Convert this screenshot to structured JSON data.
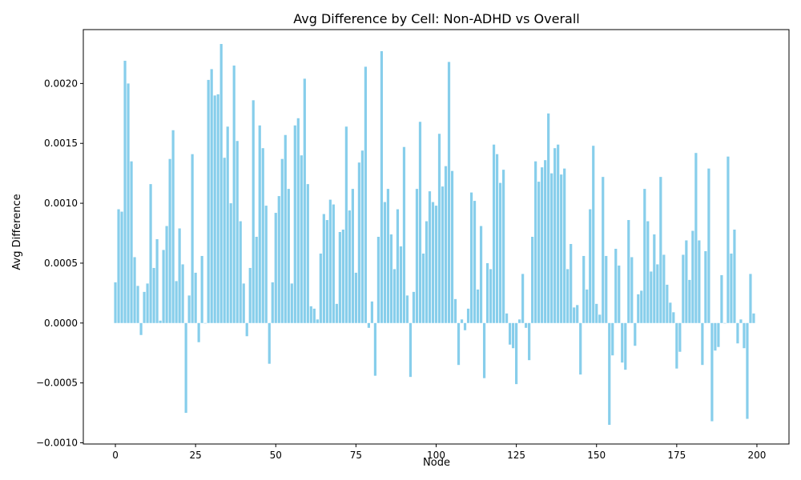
{
  "chart_data": {
    "type": "bar",
    "title": "Avg Difference by Cell: Non-ADHD vs Overall",
    "xlabel": "Node",
    "ylabel": "Avg Difference",
    "xlim": [
      -10,
      210
    ],
    "ylim": [
      -0.00101,
      0.00245
    ],
    "xticks": [
      0,
      25,
      50,
      75,
      100,
      125,
      150,
      175,
      200
    ],
    "xtick_labels": [
      "0",
      "25",
      "50",
      "75",
      "100",
      "125",
      "150",
      "175",
      "200"
    ],
    "yticks": [
      -0.001,
      -0.0005,
      0.0,
      0.0005,
      0.001,
      0.0015,
      0.002
    ],
    "ytick_labels": [
      "−0.0010",
      "−0.0005",
      "0.0000",
      "0.0005",
      "0.0010",
      "0.0015",
      "0.0020"
    ],
    "bar_color": "#87ceeb",
    "grid": false,
    "x": [
      0,
      1,
      2,
      3,
      4,
      5,
      6,
      7,
      8,
      9,
      10,
      11,
      12,
      13,
      14,
      15,
      16,
      17,
      18,
      19,
      20,
      21,
      22,
      23,
      24,
      25,
      26,
      27,
      28,
      29,
      30,
      31,
      32,
      33,
      34,
      35,
      36,
      37,
      38,
      39,
      40,
      41,
      42,
      43,
      44,
      45,
      46,
      47,
      48,
      49,
      50,
      51,
      52,
      53,
      54,
      55,
      56,
      57,
      58,
      59,
      60,
      61,
      62,
      63,
      64,
      65,
      66,
      67,
      68,
      69,
      70,
      71,
      72,
      73,
      74,
      75,
      76,
      77,
      78,
      79,
      80,
      81,
      82,
      83,
      84,
      85,
      86,
      87,
      88,
      89,
      90,
      91,
      92,
      93,
      94,
      95,
      96,
      97,
      98,
      99,
      100,
      101,
      102,
      103,
      104,
      105,
      106,
      107,
      108,
      109,
      110,
      111,
      112,
      113,
      114,
      115,
      116,
      117,
      118,
      119,
      120,
      121,
      122,
      123,
      124,
      125,
      126,
      127,
      128,
      129,
      130,
      131,
      132,
      133,
      134,
      135,
      136,
      137,
      138,
      139,
      140,
      141,
      142,
      143,
      144,
      145,
      146,
      147,
      148,
      149,
      150,
      151,
      152,
      153,
      154,
      155,
      156,
      157,
      158,
      159,
      160,
      161,
      162,
      163,
      164,
      165,
      166,
      167,
      168,
      169,
      170,
      171,
      172,
      173,
      174,
      175,
      176,
      177,
      178,
      179,
      180,
      181,
      182,
      183,
      184,
      185,
      186,
      187,
      188,
      189,
      190,
      191,
      192,
      193,
      194,
      195,
      196,
      197,
      198,
      199
    ],
    "values": [
      0.00034,
      0.00095,
      0.00093,
      0.00219,
      0.002,
      0.00135,
      0.00055,
      0.00031,
      -0.0001,
      0.00026,
      0.00033,
      0.00116,
      0.00046,
      0.0007,
      2e-05,
      0.00061,
      0.00081,
      0.00137,
      0.00161,
      0.00035,
      0.00079,
      0.00049,
      -0.00075,
      0.00023,
      0.00141,
      0.00042,
      -0.00016,
      0.00056,
      0.0,
      0.00203,
      0.00212,
      0.0019,
      0.00191,
      0.00233,
      0.00138,
      0.00164,
      0.001,
      0.00215,
      0.00152,
      0.00085,
      0.00033,
      -0.00011,
      0.00046,
      0.00186,
      0.00072,
      0.00165,
      0.00146,
      0.00098,
      -0.00034,
      0.00034,
      0.00092,
      0.00106,
      0.00137,
      0.00157,
      0.00112,
      0.00033,
      0.00165,
      0.00171,
      0.0014,
      0.00204,
      0.00116,
      0.00014,
      0.00012,
      3e-05,
      0.00058,
      0.00091,
      0.00086,
      0.00103,
      0.00099,
      0.00016,
      0.00076,
      0.00078,
      0.00164,
      0.00094,
      0.00112,
      0.00042,
      0.00134,
      0.00144,
      0.00214,
      -4e-05,
      0.00018,
      -0.00044,
      0.00072,
      0.00227,
      0.00101,
      0.00112,
      0.00074,
      0.00045,
      0.00095,
      0.00064,
      0.00147,
      0.00023,
      -0.00045,
      0.00026,
      0.00112,
      0.00168,
      0.00058,
      0.00085,
      0.0011,
      0.00101,
      0.00098,
      0.00158,
      0.00114,
      0.00131,
      0.00218,
      0.00127,
      0.0002,
      -0.00035,
      3e-05,
      -6e-05,
      0.00012,
      0.00109,
      0.00102,
      0.00028,
      0.00081,
      -0.00046,
      0.0005,
      0.00045,
      0.00149,
      0.00141,
      0.00117,
      0.00128,
      8e-05,
      -0.00018,
      -0.00021,
      -0.00051,
      3e-05,
      0.00041,
      -4e-05,
      -0.00031,
      0.00072,
      0.00135,
      0.00118,
      0.0013,
      0.00136,
      0.00175,
      0.00125,
      0.00146,
      0.00149,
      0.00124,
      0.00129,
      0.00045,
      0.00066,
      0.00013,
      0.00015,
      -0.00043,
      0.00056,
      0.00028,
      0.00095,
      0.00148,
      0.00016,
      7e-05,
      0.00122,
      0.00056,
      -0.00085,
      -0.00027,
      0.00062,
      0.00048,
      -0.00033,
      -0.00039,
      0.00086,
      0.00055,
      -0.00019,
      0.00024,
      0.00027,
      0.00112,
      0.00085,
      0.00043,
      0.00074,
      0.00049,
      0.00122,
      0.00057,
      0.00032,
      0.00017,
      9e-05,
      -0.00038,
      -0.00024,
      0.00057,
      0.00069,
      0.00036,
      0.00077,
      0.00142,
      0.00069,
      -0.00035,
      0.0006,
      0.00129,
      -0.00082,
      -0.00023,
      -0.0002,
      0.0004,
      0.0,
      0.00139,
      0.00058,
      0.00078,
      -0.00017,
      3e-05,
      -0.00021,
      -0.0008,
      0.00041,
      8e-05
    ]
  }
}
